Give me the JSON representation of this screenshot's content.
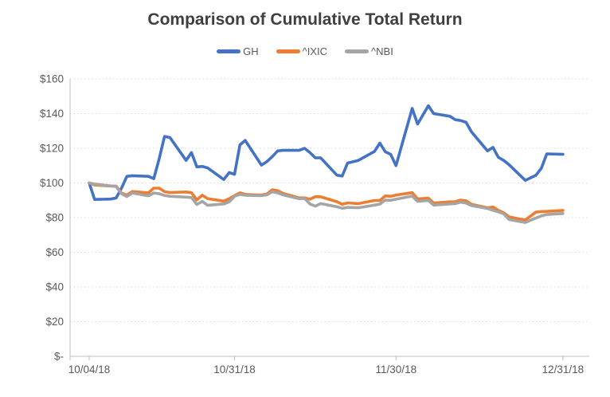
{
  "title": "Comparison of Cumulative Total Return",
  "legend": [
    {
      "label": "GH",
      "color": "#4472C4"
    },
    {
      "label": "^IXIC",
      "color": "#ED7D31"
    },
    {
      "label": "^NBI",
      "color": "#A5A5A5"
    }
  ],
  "colors": {
    "background": "#FFFFFF",
    "title_text": "#3F3F3F",
    "axis_text": "#595959",
    "gridline": "#D9D9D9",
    "axis_line": "#BFBFBF"
  },
  "y_axis": {
    "labels": [
      "$160",
      "$140",
      "$120",
      "$100",
      "$80",
      "$60",
      "$40",
      "$20",
      "$-"
    ],
    "values": [
      160,
      140,
      120,
      100,
      80,
      60,
      40,
      20,
      0
    ]
  },
  "x_axis": {
    "labels": [
      "10/04/18",
      "10/31/18",
      "11/30/18",
      "12/31/18"
    ]
  },
  "chart_data": {
    "type": "line",
    "title": "Comparison of Cumulative Total Return",
    "xlabel": "",
    "ylabel": "",
    "ylim": [
      0,
      160
    ],
    "grid": true,
    "grid_style": "dotted",
    "legend_position": "top",
    "x": [
      "10/04/18",
      "10/05/18",
      "10/08/18",
      "10/09/18",
      "10/10/18",
      "10/11/18",
      "10/12/18",
      "10/15/18",
      "10/16/18",
      "10/17/18",
      "10/18/18",
      "10/19/18",
      "10/22/18",
      "10/23/18",
      "10/24/18",
      "10/25/18",
      "10/26/18",
      "10/29/18",
      "10/30/18",
      "10/31/18",
      "11/01/18",
      "11/02/18",
      "11/05/18",
      "11/06/18",
      "11/07/18",
      "11/08/18",
      "11/09/18",
      "11/12/18",
      "11/13/18",
      "11/14/18",
      "11/15/18",
      "11/16/18",
      "11/19/18",
      "11/20/18",
      "11/21/18",
      "11/23/18",
      "11/26/18",
      "11/27/18",
      "11/28/18",
      "11/29/18",
      "11/30/18",
      "12/03/18",
      "12/04/18",
      "12/06/18",
      "12/07/18",
      "12/10/18",
      "12/11/18",
      "12/12/18",
      "12/13/18",
      "12/14/18",
      "12/17/18",
      "12/18/18",
      "12/19/18",
      "12/20/18",
      "12/21/18",
      "12/24/18",
      "12/26/18",
      "12/27/18",
      "12/28/18",
      "12/31/18"
    ],
    "series": [
      {
        "name": "GH",
        "color": "#4472C4",
        "values": [
          100,
          90.5,
          90.7,
          91.3,
          97,
          103.8,
          104.2,
          103.8,
          102.5,
          114,
          126.8,
          126.2,
          113,
          117.5,
          109.3,
          109.5,
          108.7,
          102,
          106,
          105,
          122,
          124.5,
          110.3,
          112.3,
          115.1,
          118.5,
          118.8,
          118.8,
          120,
          117.5,
          114.5,
          114.5,
          104.5,
          104,
          111.5,
          113,
          118.2,
          123,
          118,
          116.5,
          110,
          143,
          134,
          144.5,
          140,
          138.5,
          136.5,
          136,
          135,
          129.5,
          118.5,
          120.5,
          114.8,
          113,
          110.5,
          101.5,
          104.5,
          108.5,
          116.8,
          116.5
        ]
      },
      {
        "name": "^IXIC",
        "color": "#ED7D31",
        "values": [
          100,
          98.8,
          98.2,
          98.2,
          94.2,
          93,
          95.1,
          94.3,
          97,
          97,
          95,
          94.5,
          94.8,
          94.4,
          90.2,
          92.9,
          91,
          89.5,
          90.9,
          92.7,
          94.3,
          93.4,
          93,
          93.6,
          96.1,
          95.6,
          94,
          91.4,
          91.4,
          90.6,
          92.1,
          92,
          89.2,
          87.7,
          88.5,
          88.1,
          89.9,
          89.9,
          92.5,
          92.3,
          93,
          94.4,
          90.8,
          91.2,
          88.4,
          89.1,
          89.2,
          90.1,
          89.7,
          87.7,
          85.7,
          86.1,
          84.2,
          82.8,
          80.4,
          78.6,
          83.2,
          83.5,
          83.6,
          84.2
        ]
      },
      {
        "name": "^NBI",
        "color": "#A5A5A5",
        "values": [
          100,
          99.4,
          98.3,
          98,
          93.8,
          92.2,
          94.2,
          92.6,
          94.2,
          93.8,
          92.8,
          92.3,
          91.8,
          91.6,
          87.6,
          89.4,
          87.1,
          87.9,
          89.1,
          92.3,
          93.4,
          92.9,
          92.7,
          93.1,
          94.9,
          94.3,
          93.1,
          90.9,
          91.1,
          87.9,
          86.6,
          88.1,
          86.3,
          85.4,
          85.9,
          85.7,
          87.2,
          87.8,
          90.1,
          90,
          90.6,
          92.4,
          89.4,
          89.9,
          87.2,
          87.9,
          88.1,
          88.9,
          88.4,
          87,
          85.3,
          84.3,
          83.3,
          82.2,
          78.9,
          77.2,
          79.8,
          81,
          81.8,
          82.4
        ]
      }
    ]
  }
}
